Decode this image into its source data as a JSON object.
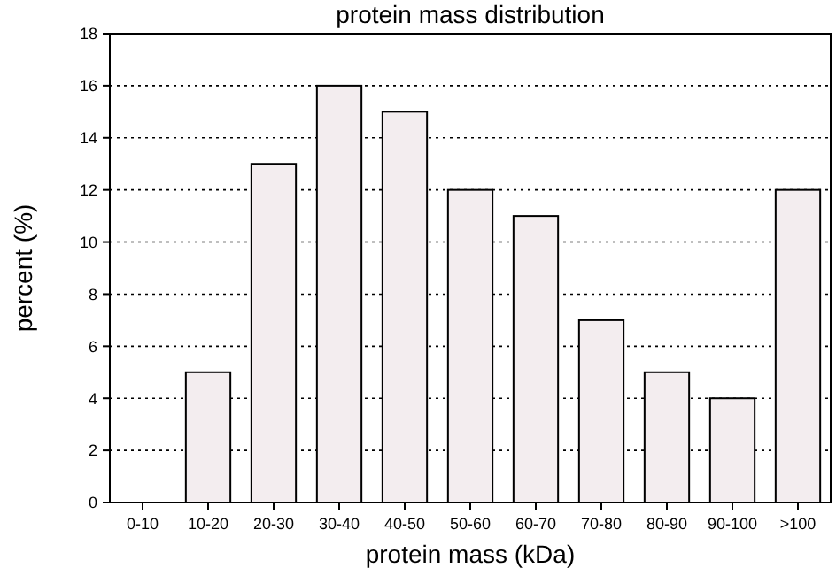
{
  "chart_data": {
    "type": "bar",
    "title": "protein mass distribution",
    "xlabel": "protein mass (kDa)",
    "ylabel": "percent (%)",
    "categories": [
      "0-10",
      "10-20",
      "20-30",
      "30-40",
      "40-50",
      "50-60",
      "60-70",
      "70-80",
      "80-90",
      "90-100",
      ">100"
    ],
    "values": [
      0,
      5,
      13,
      16,
      15,
      12,
      11,
      7,
      5,
      4,
      12
    ],
    "color": "#f3edef",
    "ylim": [
      0,
      18
    ],
    "yticks": [
      0,
      2,
      4,
      6,
      8,
      10,
      12,
      14,
      16,
      18
    ],
    "grid": "y"
  }
}
